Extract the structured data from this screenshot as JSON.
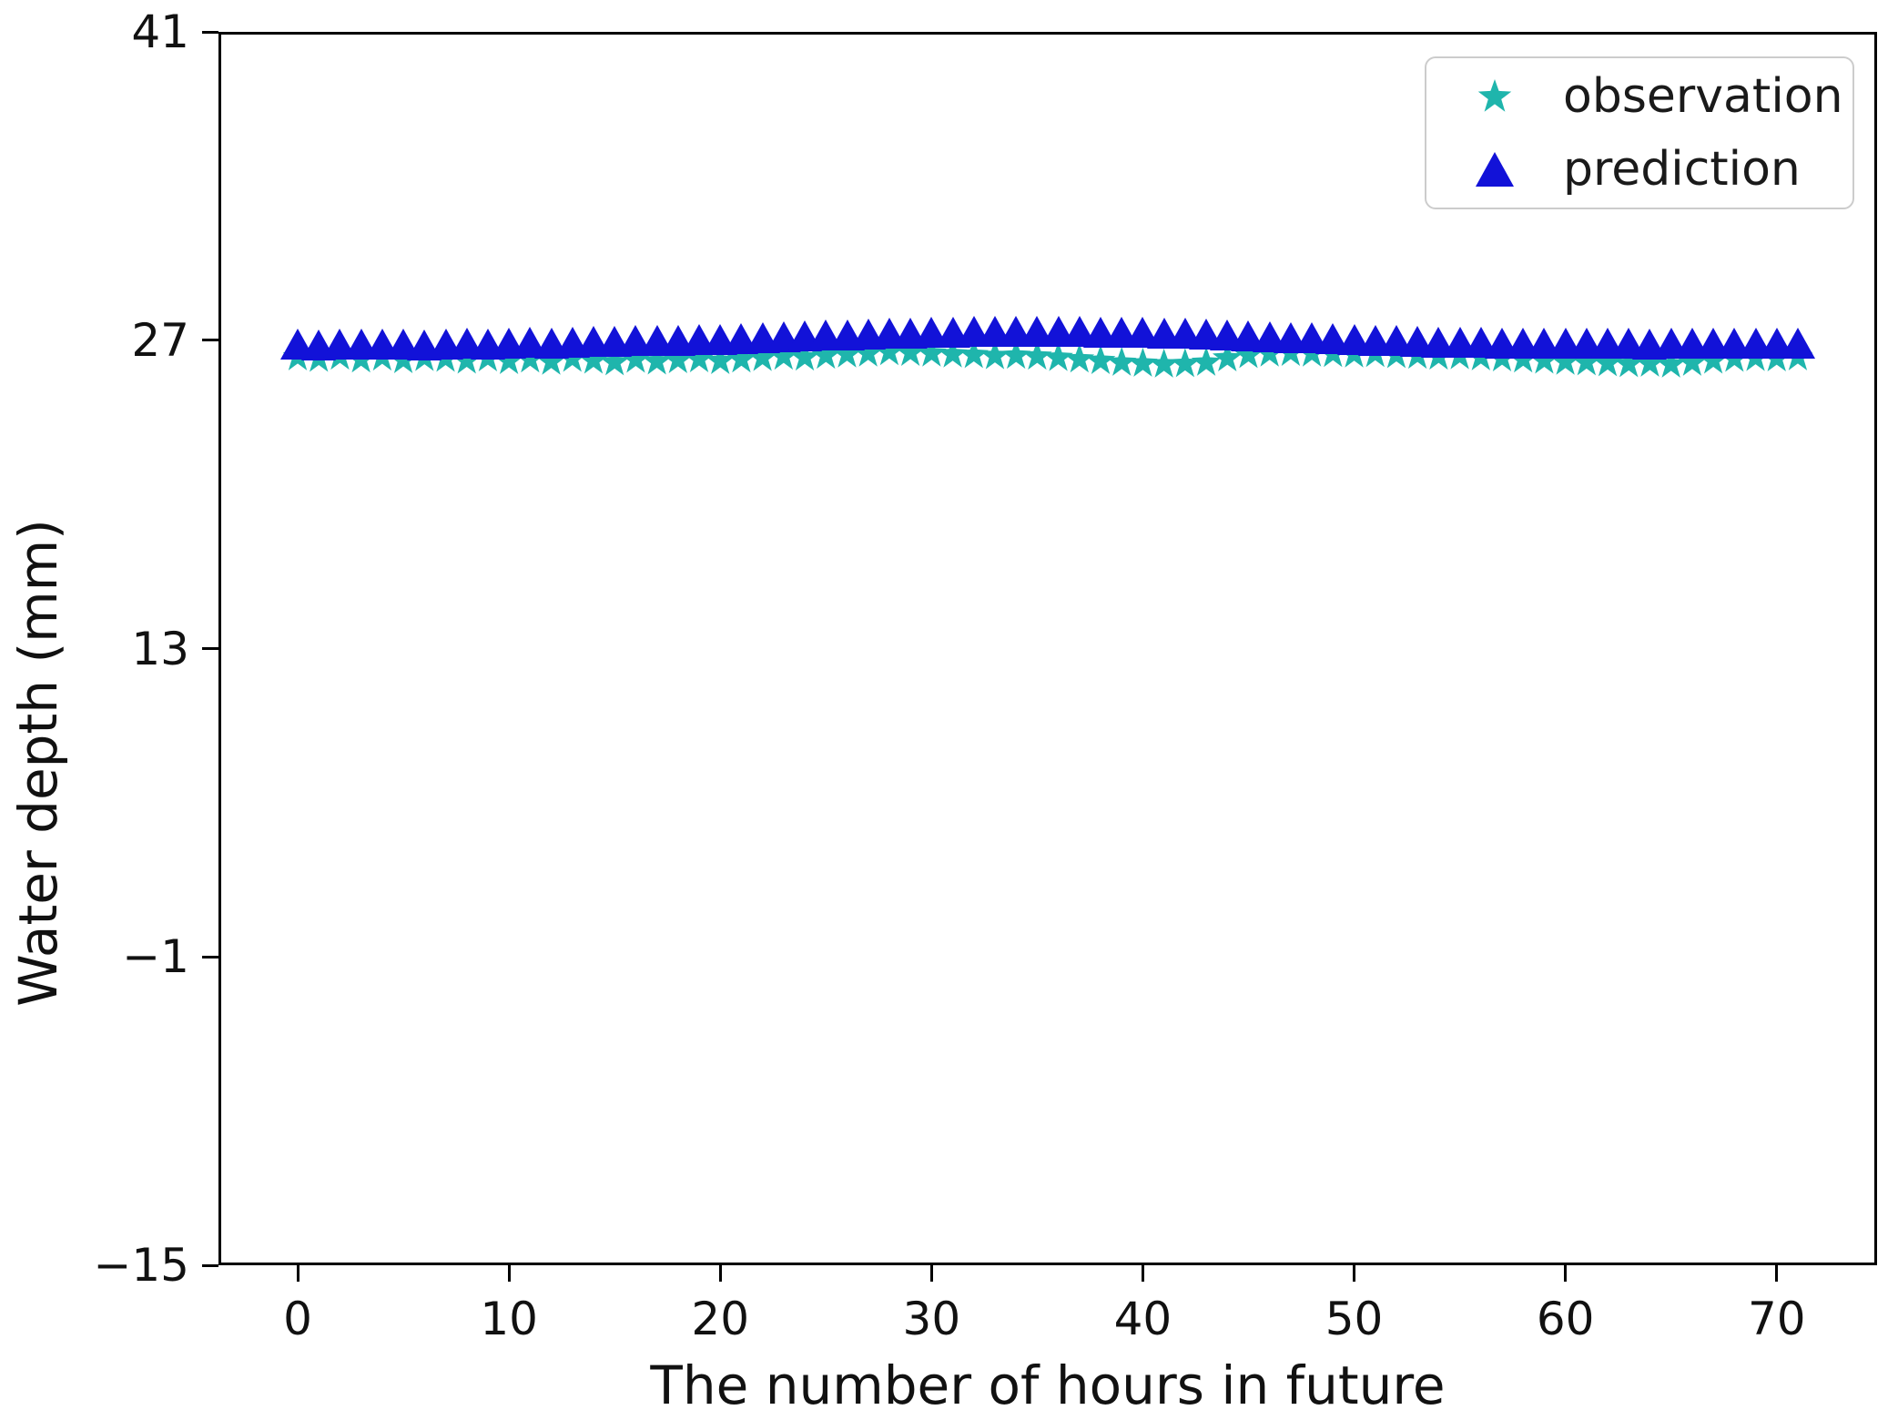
{
  "chart_data": {
    "type": "scatter",
    "title": "",
    "xlabel": "The number of hours in future",
    "ylabel": "Water depth (mm)",
    "xlim": [
      -3.75,
      74.75
    ],
    "ylim": [
      -15,
      41
    ],
    "grid": false,
    "legend_position": "upper right",
    "xticks": [
      {
        "v": 0,
        "label": "0"
      },
      {
        "v": 10,
        "label": "10"
      },
      {
        "v": 20,
        "label": "20"
      },
      {
        "v": 30,
        "label": "30"
      },
      {
        "v": 40,
        "label": "40"
      },
      {
        "v": 50,
        "label": "50"
      },
      {
        "v": 60,
        "label": "60"
      },
      {
        "v": 70,
        "label": "70"
      }
    ],
    "yticks": [
      {
        "v": 41,
        "label": "41"
      },
      {
        "v": 27,
        "label": "27"
      },
      {
        "v": 13,
        "label": "13"
      },
      {
        "v": -1,
        "label": "−1"
      },
      {
        "v": -15,
        "label": "−15"
      }
    ],
    "series": [
      {
        "name": "observation",
        "marker": "star",
        "color": "#1fb5ac",
        "x": [
          0,
          1,
          2,
          3,
          4,
          5,
          6,
          7,
          8,
          9,
          10,
          11,
          12,
          13,
          14,
          15,
          16,
          17,
          18,
          19,
          20,
          21,
          22,
          23,
          24,
          25,
          26,
          27,
          28,
          29,
          30,
          31,
          32,
          33,
          34,
          35,
          36,
          37,
          38,
          39,
          40,
          41,
          42,
          43,
          44,
          45,
          46,
          47,
          48,
          49,
          50,
          51,
          52,
          53,
          54,
          55,
          56,
          57,
          58,
          59,
          60,
          61,
          62,
          63,
          64,
          65,
          66,
          67,
          68,
          69,
          70,
          71
        ],
        "y": [
          26.25,
          26.18,
          26.28,
          26.15,
          26.24,
          26.12,
          26.22,
          26.18,
          26.1,
          26.2,
          26.08,
          26.15,
          26.05,
          26.18,
          26.1,
          26.02,
          26.14,
          26.06,
          26.12,
          26.16,
          26.08,
          26.15,
          26.22,
          26.28,
          26.24,
          26.32,
          26.38,
          26.42,
          26.48,
          26.45,
          26.42,
          26.38,
          26.35,
          26.3,
          26.32,
          26.28,
          26.22,
          26.15,
          26.08,
          26.0,
          25.96,
          25.92,
          25.94,
          26.0,
          26.2,
          26.35,
          26.42,
          26.45,
          26.42,
          26.4,
          26.38,
          26.4,
          26.35,
          26.32,
          26.28,
          26.3,
          26.25,
          26.2,
          26.15,
          26.1,
          26.05,
          26.02,
          25.98,
          25.94,
          25.96,
          25.92,
          26.0,
          26.1,
          26.18,
          26.22,
          26.2,
          26.25
        ]
      },
      {
        "name": "prediction",
        "marker": "triangle-up",
        "color": "#1212d8",
        "x": [
          0,
          1,
          2,
          3,
          4,
          5,
          6,
          7,
          8,
          9,
          10,
          11,
          12,
          13,
          14,
          15,
          16,
          17,
          18,
          19,
          20,
          21,
          22,
          23,
          24,
          25,
          26,
          27,
          28,
          29,
          30,
          31,
          32,
          33,
          34,
          35,
          36,
          37,
          38,
          39,
          40,
          41,
          42,
          43,
          44,
          45,
          46,
          47,
          48,
          49,
          50,
          51,
          52,
          53,
          54,
          55,
          56,
          57,
          58,
          59,
          60,
          61,
          62,
          63,
          64,
          65,
          66,
          67,
          68,
          69,
          70,
          71
        ],
        "y": [
          26.82,
          26.8,
          26.83,
          26.81,
          26.84,
          26.82,
          26.8,
          26.83,
          26.85,
          26.84,
          26.87,
          26.9,
          26.88,
          26.92,
          26.95,
          26.93,
          26.97,
          27.0,
          26.98,
          27.02,
          27.05,
          27.08,
          27.12,
          27.15,
          27.18,
          27.22,
          27.25,
          27.28,
          27.32,
          27.34,
          27.36,
          27.38,
          27.4,
          27.4,
          27.41,
          27.4,
          27.41,
          27.4,
          27.38,
          27.36,
          27.35,
          27.33,
          27.3,
          27.27,
          27.24,
          27.2,
          27.17,
          27.13,
          27.1,
          27.06,
          27.03,
          27.0,
          26.97,
          26.95,
          26.92,
          26.9,
          26.89,
          26.88,
          26.87,
          26.86,
          26.86,
          26.85,
          26.86,
          26.85,
          26.84,
          26.85,
          26.86,
          26.85,
          26.86,
          26.87,
          26.86,
          26.88
        ]
      }
    ]
  },
  "legend": {
    "items": [
      {
        "label": "observation"
      },
      {
        "label": "prediction"
      }
    ]
  }
}
